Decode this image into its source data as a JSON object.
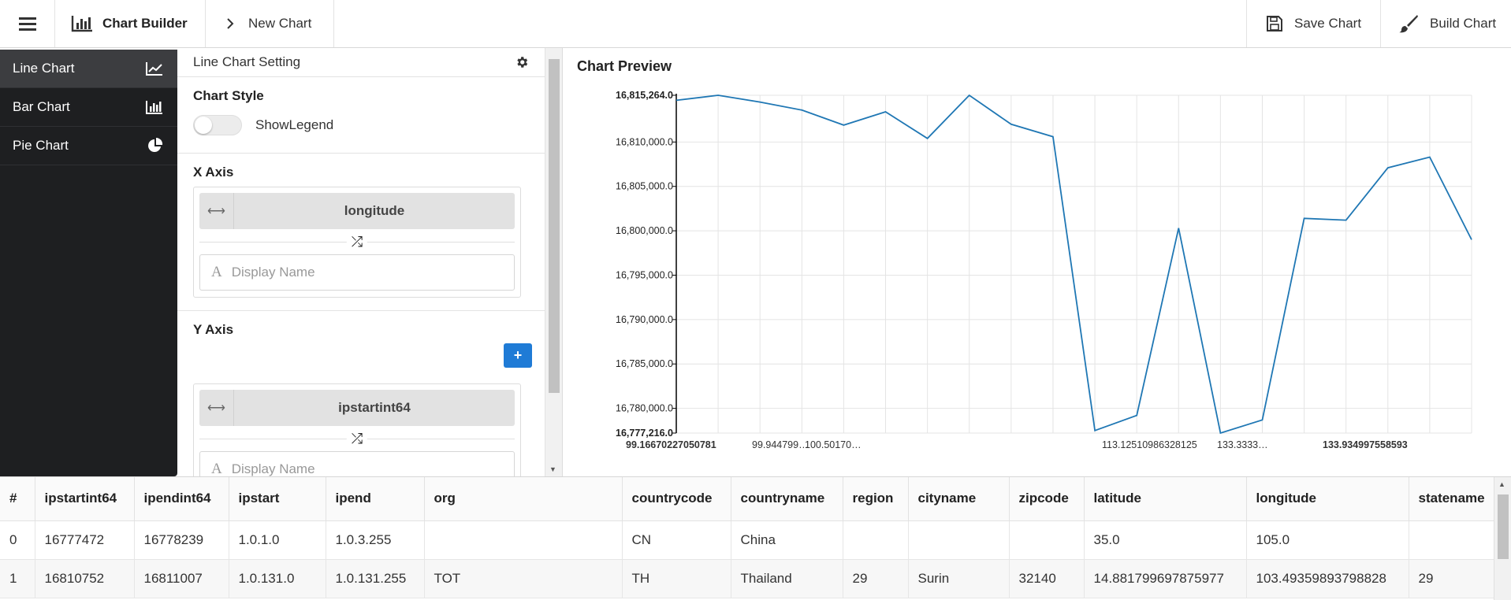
{
  "topbar": {
    "brand_label": "Chart Builder",
    "breadcrumb_label": "New Chart",
    "save_label": "Save Chart",
    "build_label": "Build Chart"
  },
  "sidebar": {
    "items": [
      {
        "label": "Line Chart",
        "icon": "line-chart-icon",
        "active": true
      },
      {
        "label": "Bar Chart",
        "icon": "bar-chart-icon",
        "active": false
      },
      {
        "label": "Pie Chart",
        "icon": "pie-chart-icon",
        "active": false
      }
    ]
  },
  "settings": {
    "header": "Line Chart Setting",
    "chart_style_title": "Chart Style",
    "show_legend_label": "ShowLegend",
    "show_legend_on": false,
    "x_axis": {
      "title": "X Axis",
      "field": "longitude",
      "display_placeholder": "Display Name"
    },
    "y_axis": {
      "title": "Y Axis",
      "add_label": "+",
      "field": "ipstartint64",
      "display_placeholder": "Display Name"
    }
  },
  "preview": {
    "title": "Chart Preview"
  },
  "chart_data": {
    "type": "line",
    "title": "",
    "xlabel": "",
    "ylabel": "",
    "color": "#1f77b4",
    "grid": true,
    "ylim": [
      16777216,
      16815264
    ],
    "y_ticks": [
      "16,815,264.0",
      "16,810,000.0",
      "16,805,000.0",
      "16,800,000.0",
      "16,795,000.0",
      "16,790,000.0",
      "16,785,000.0",
      "16,780,000.0",
      "16,777,216.0"
    ],
    "x_tick_labels": [
      "99.16670227050781",
      "99.94479…",
      "…",
      "…",
      "…",
      "…",
      "…",
      "…",
      "…",
      "…",
      "113.12…",
      "…",
      "…",
      "133.3333…",
      "…",
      "…",
      "133.934997558593…"
    ],
    "x_ticks_shown": [
      "99.16670227050781",
      "99.944799…",
      "100.50170…",
      "113.12510986328125",
      "133.3333…",
      "133.934997558593"
    ],
    "values": [
      16814700,
      16815264,
      16814500,
      16813600,
      16811900,
      16813400,
      16810400,
      16815264,
      16812000,
      16810600,
      16777500,
      16779200,
      16800300,
      16777216,
      16778700,
      16801400,
      16801200,
      16807100,
      16808300,
      16799000
    ]
  },
  "table": {
    "columns": [
      "#",
      "ipstartint64",
      "ipendint64",
      "ipstart",
      "ipend",
      "org",
      "countrycode",
      "countryname",
      "region",
      "cityname",
      "zipcode",
      "latitude",
      "longitude",
      "statename"
    ],
    "rows": [
      [
        "0",
        "16777472",
        "16778239",
        "1.0.1.0",
        "1.0.3.255",
        "",
        "CN",
        "China",
        "",
        "",
        "",
        "35.0",
        "105.0",
        ""
      ],
      [
        "1",
        "16810752",
        "16811007",
        "1.0.131.0",
        "1.0.131.255",
        "TOT",
        "TH",
        "Thailand",
        "29",
        "Surin",
        "32140",
        "14.881799697875977",
        "103.49359893798828",
        "29"
      ]
    ]
  }
}
